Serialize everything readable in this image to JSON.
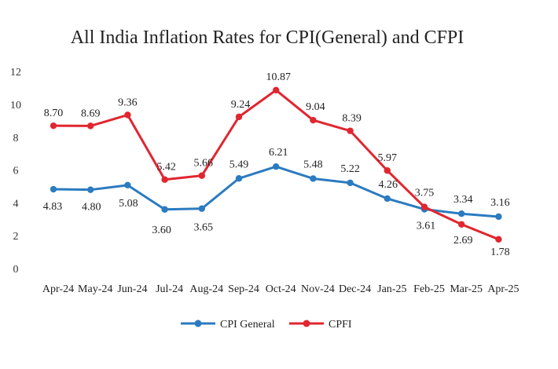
{
  "chart_data": {
    "type": "line",
    "title": "All India Inflation Rates for CPI(General) and CFPI",
    "xlabel": "",
    "ylabel": "",
    "categories": [
      "Apr-24",
      "May-24",
      "Jun-24",
      "Jul-24",
      "Aug-24",
      "Sep-24",
      "Oct-24",
      "Nov-24",
      "Dec-24",
      "Jan-25",
      "Feb-25",
      "Mar-25",
      "Apr-25"
    ],
    "yticks": [
      "0",
      "2",
      "4",
      "6",
      "8",
      "10",
      "12"
    ],
    "ylim": [
      0,
      12
    ],
    "grid": false,
    "legend_position": "bottom",
    "series": [
      {
        "name": "CPI General",
        "color": "#2b7bc0",
        "values": [
          4.83,
          4.8,
          5.08,
          3.6,
          3.65,
          5.49,
          6.21,
          5.48,
          5.22,
          4.26,
          3.61,
          3.34,
          3.16
        ],
        "labels": [
          "4.83",
          "4.80",
          "5.08",
          "3.60",
          "3.65",
          "5.49",
          "6.21",
          "5.48",
          "5.22",
          "4.26",
          "3.61",
          "3.34",
          "3.16"
        ]
      },
      {
        "name": "CPFI",
        "color": "#e0262f",
        "values": [
          8.7,
          8.69,
          9.36,
          5.42,
          5.66,
          9.24,
          10.87,
          9.04,
          8.39,
          5.97,
          3.75,
          2.69,
          1.78
        ],
        "labels": [
          "8.70",
          "8.69",
          "9.36",
          "5.42",
          "5.66",
          "9.24",
          "10.87",
          "9.04",
          "8.39",
          "5.97",
          "3.75",
          "2.69",
          "1.78"
        ]
      }
    ]
  }
}
